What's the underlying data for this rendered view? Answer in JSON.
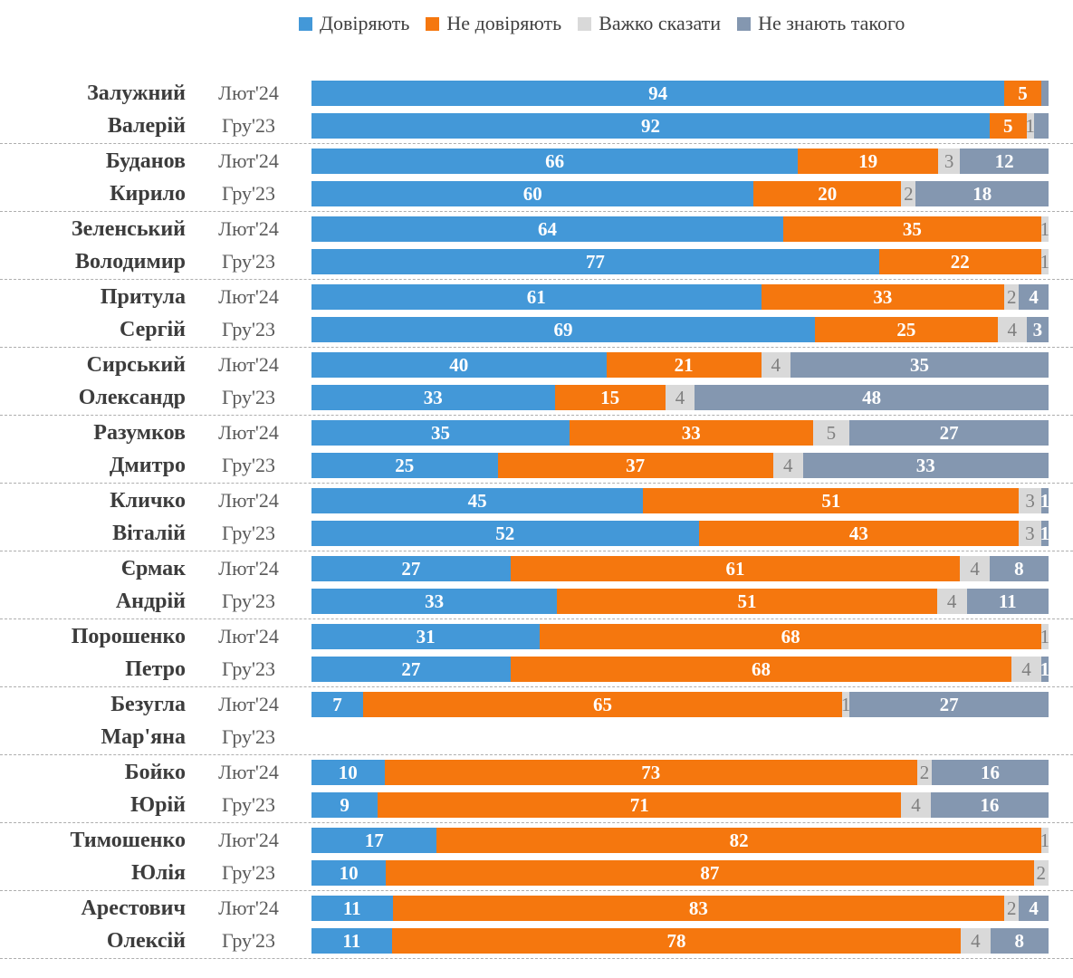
{
  "legend": {
    "items": [
      {
        "name": "trust",
        "label": "Довіряють",
        "color": "#4398d8"
      },
      {
        "name": "distrust",
        "label": "Не довіряють",
        "color": "#f5770e"
      },
      {
        "name": "hard-to-say",
        "label": "Важко сказати",
        "color": "#d9d9d9"
      },
      {
        "name": "dont-know",
        "label": "Не знають такого",
        "color": "#8497b0"
      }
    ]
  },
  "chart_data": {
    "type": "bar",
    "orientation": "horizontal",
    "stacked": true,
    "x_range_percent": [
      0,
      100
    ],
    "series_names": [
      "Довіряють",
      "Не довіряють",
      "Важко сказати",
      "Не знають такого"
    ],
    "series_colors": [
      "#4398d8",
      "#f5770e",
      "#d9d9d9",
      "#8497b0"
    ],
    "period_labels": [
      "Лют'24",
      "Гру'23"
    ],
    "groups": [
      {
        "name": [
          "Залужний",
          "Валерій"
        ],
        "rows": [
          {
            "period": "Лют'24",
            "values": [
              94,
              5,
              0,
              1
            ],
            "labels": [
              "94",
              "5",
              "",
              ""
            ]
          },
          {
            "period": "Гру'23",
            "values": [
              92,
              5,
              1,
              2
            ],
            "labels": [
              "92",
              "5",
              "1",
              ""
            ]
          }
        ]
      },
      {
        "name": [
          "Буданов",
          "Кирило"
        ],
        "rows": [
          {
            "period": "Лют'24",
            "values": [
              66,
              19,
              3,
              12
            ],
            "labels": [
              "66",
              "19",
              "3",
              "12"
            ]
          },
          {
            "period": "Гру'23",
            "values": [
              60,
              20,
              2,
              18
            ],
            "labels": [
              "60",
              "20",
              "2",
              "18"
            ]
          }
        ]
      },
      {
        "name": [
          "Зеленський",
          "Володимир"
        ],
        "rows": [
          {
            "period": "Лют'24",
            "values": [
              64,
              35,
              1,
              0
            ],
            "labels": [
              "64",
              "35",
              "1",
              ""
            ]
          },
          {
            "period": "Гру'23",
            "values": [
              77,
              22,
              1,
              0
            ],
            "labels": [
              "77",
              "22",
              "1",
              ""
            ]
          }
        ]
      },
      {
        "name": [
          "Притула",
          "Сергій"
        ],
        "rows": [
          {
            "period": "Лют'24",
            "values": [
              61,
              33,
              2,
              4
            ],
            "labels": [
              "61",
              "33",
              "2",
              "4"
            ]
          },
          {
            "period": "Гру'23",
            "values": [
              69,
              25,
              4,
              3
            ],
            "labels": [
              "69",
              "25",
              "4",
              "3"
            ]
          }
        ]
      },
      {
        "name": [
          "Сирський",
          "Олександр"
        ],
        "rows": [
          {
            "period": "Лют'24",
            "values": [
              40,
              21,
              4,
              35
            ],
            "labels": [
              "40",
              "21",
              "4",
              "35"
            ]
          },
          {
            "period": "Гру'23",
            "values": [
              33,
              15,
              4,
              48
            ],
            "labels": [
              "33",
              "15",
              "4",
              "48"
            ]
          }
        ]
      },
      {
        "name": [
          "Разумков",
          "Дмитро"
        ],
        "rows": [
          {
            "period": "Лют'24",
            "values": [
              35,
              33,
              5,
              27
            ],
            "labels": [
              "35",
              "33",
              "5",
              "27"
            ]
          },
          {
            "period": "Гру'23",
            "values": [
              25,
              37,
              4,
              33
            ],
            "labels": [
              "25",
              "37",
              "4",
              "33"
            ]
          }
        ]
      },
      {
        "name": [
          "Кличко",
          "Віталій"
        ],
        "rows": [
          {
            "period": "Лют'24",
            "values": [
              45,
              51,
              3,
              1
            ],
            "labels": [
              "45",
              "51",
              "3",
              "1"
            ]
          },
          {
            "period": "Гру'23",
            "values": [
              52,
              43,
              3,
              1
            ],
            "labels": [
              "52",
              "43",
              "3",
              "1"
            ]
          }
        ]
      },
      {
        "name": [
          "Єрмак",
          "Андрій"
        ],
        "rows": [
          {
            "period": "Лют'24",
            "values": [
              27,
              61,
              4,
              8
            ],
            "labels": [
              "27",
              "61",
              "4",
              "8"
            ]
          },
          {
            "period": "Гру'23",
            "values": [
              33,
              51,
              4,
              11
            ],
            "labels": [
              "33",
              "51",
              "4",
              "11"
            ]
          }
        ]
      },
      {
        "name": [
          "Порошенко",
          "Петро"
        ],
        "rows": [
          {
            "period": "Лют'24",
            "values": [
              31,
              68,
              1,
              0
            ],
            "labels": [
              "31",
              "68",
              "1",
              ""
            ]
          },
          {
            "period": "Гру'23",
            "values": [
              27,
              68,
              4,
              1
            ],
            "labels": [
              "27",
              "68",
              "4",
              "1"
            ]
          }
        ]
      },
      {
        "name": [
          "Безугла",
          "Мар'яна"
        ],
        "rows": [
          {
            "period": "Лют'24",
            "values": [
              7,
              65,
              1,
              27
            ],
            "labels": [
              "7",
              "65",
              "1",
              "27"
            ]
          },
          {
            "period": "Гру'23",
            "values": null,
            "labels": null
          }
        ]
      },
      {
        "name": [
          "Бойко",
          "Юрій"
        ],
        "rows": [
          {
            "period": "Лют'24",
            "values": [
              10,
              73,
              2,
              16
            ],
            "labels": [
              "10",
              "73",
              "2",
              "16"
            ]
          },
          {
            "period": "Гру'23",
            "values": [
              9,
              71,
              4,
              16
            ],
            "labels": [
              "9",
              "71",
              "4",
              "16"
            ]
          }
        ]
      },
      {
        "name": [
          "Тимошенко",
          "Юлія"
        ],
        "rows": [
          {
            "period": "Лют'24",
            "values": [
              17,
              82,
              1,
              0
            ],
            "labels": [
              "17",
              "82",
              "1",
              ""
            ]
          },
          {
            "period": "Гру'23",
            "values": [
              10,
              87,
              2,
              0
            ],
            "labels": [
              "10",
              "87",
              "2",
              ""
            ]
          }
        ]
      },
      {
        "name": [
          "Арестович",
          "Олексій"
        ],
        "rows": [
          {
            "period": "Лют'24",
            "values": [
              11,
              83,
              2,
              4
            ],
            "labels": [
              "11",
              "83",
              "2",
              "4"
            ]
          },
          {
            "period": "Гру'23",
            "values": [
              11,
              78,
              4,
              8
            ],
            "labels": [
              "11",
              "78",
              "4",
              "8"
            ]
          }
        ]
      }
    ]
  }
}
